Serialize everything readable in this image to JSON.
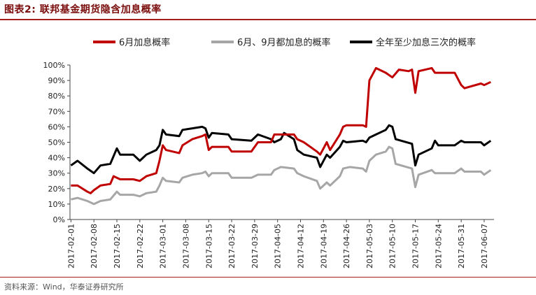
{
  "header": {
    "title": "图表2:    联邦基金期货隐含加息概率"
  },
  "footer": {
    "source": "资料来源：Wind，华泰证券研究所"
  },
  "chart_data": {
    "type": "line",
    "title": "",
    "xlabel": "",
    "ylabel": "",
    "ylim": [
      0,
      1
    ],
    "yticks": [
      "0%",
      "10%",
      "20%",
      "30%",
      "40%",
      "50%",
      "60%",
      "70%",
      "80%",
      "90%",
      "100%"
    ],
    "grid": false,
    "legend_position": "top",
    "x_tick_labels": [
      "2017-02-01",
      "2017-02-08",
      "2017-02-15",
      "2017-02-22",
      "2017-03-01",
      "2017-03-08",
      "2017-03-15",
      "2017-03-22",
      "2017-03-29",
      "2017-04-05",
      "2017-04-12",
      "2017-04-19",
      "2017-04-26",
      "2017-05-03",
      "2017-05-10",
      "2017-05-17",
      "2017-05-24",
      "2017-05-31",
      "2017-06-07"
    ],
    "series": [
      {
        "name": "6月加息概率",
        "color": "#c00000",
        "points": [
          [
            "2017-02-01",
            0.22
          ],
          [
            "2017-02-03",
            0.22
          ],
          [
            "2017-02-06",
            0.18
          ],
          [
            "2017-02-07",
            0.17
          ],
          [
            "2017-02-08",
            0.19
          ],
          [
            "2017-02-10",
            0.22
          ],
          [
            "2017-02-13",
            0.23
          ],
          [
            "2017-02-14",
            0.28
          ],
          [
            "2017-02-16",
            0.26
          ],
          [
            "2017-02-20",
            0.26
          ],
          [
            "2017-02-22",
            0.25
          ],
          [
            "2017-02-24",
            0.28
          ],
          [
            "2017-02-27",
            0.3
          ],
          [
            "2017-02-28",
            0.38
          ],
          [
            "2017-03-01",
            0.48
          ],
          [
            "2017-03-02",
            0.45
          ],
          [
            "2017-03-06",
            0.43
          ],
          [
            "2017-03-07",
            0.48
          ],
          [
            "2017-03-10",
            0.52
          ],
          [
            "2017-03-13",
            0.54
          ],
          [
            "2017-03-14",
            0.55
          ],
          [
            "2017-03-15",
            0.45
          ],
          [
            "2017-03-16",
            0.47
          ],
          [
            "2017-03-21",
            0.47
          ],
          [
            "2017-03-22",
            0.44
          ],
          [
            "2017-03-28",
            0.44
          ],
          [
            "2017-03-30",
            0.5
          ],
          [
            "2017-04-03",
            0.5
          ],
          [
            "2017-04-04",
            0.55
          ],
          [
            "2017-04-10",
            0.55
          ],
          [
            "2017-04-11",
            0.52
          ],
          [
            "2017-04-13",
            0.5
          ],
          [
            "2017-04-17",
            0.44
          ],
          [
            "2017-04-18",
            0.42
          ],
          [
            "2017-04-20",
            0.5
          ],
          [
            "2017-04-21",
            0.45
          ],
          [
            "2017-04-24",
            0.55
          ],
          [
            "2017-04-25",
            0.6
          ],
          [
            "2017-04-26",
            0.61
          ],
          [
            "2017-05-01",
            0.61
          ],
          [
            "2017-05-02",
            0.6
          ],
          [
            "2017-05-03",
            0.9
          ],
          [
            "2017-05-05",
            0.98
          ],
          [
            "2017-05-08",
            0.95
          ],
          [
            "2017-05-10",
            0.92
          ],
          [
            "2017-05-12",
            0.97
          ],
          [
            "2017-05-15",
            0.96
          ],
          [
            "2017-05-16",
            0.97
          ],
          [
            "2017-05-17",
            0.82
          ],
          [
            "2017-05-18",
            0.96
          ],
          [
            "2017-05-22",
            0.98
          ],
          [
            "2017-05-23",
            0.95
          ],
          [
            "2017-05-29",
            0.95
          ],
          [
            "2017-05-31",
            0.87
          ],
          [
            "2017-06-01",
            0.85
          ],
          [
            "2017-06-06",
            0.88
          ],
          [
            "2017-06-07",
            0.87
          ],
          [
            "2017-06-09",
            0.89
          ]
        ]
      },
      {
        "name": "6月、9月都加息的概率",
        "color": "#a6a6a6",
        "points": [
          [
            "2017-02-01",
            0.13
          ],
          [
            "2017-02-03",
            0.14
          ],
          [
            "2017-02-06",
            0.12
          ],
          [
            "2017-02-08",
            0.1
          ],
          [
            "2017-02-10",
            0.12
          ],
          [
            "2017-02-13",
            0.13
          ],
          [
            "2017-02-15",
            0.18
          ],
          [
            "2017-02-16",
            0.16
          ],
          [
            "2017-02-20",
            0.16
          ],
          [
            "2017-02-22",
            0.15
          ],
          [
            "2017-02-24",
            0.17
          ],
          [
            "2017-02-27",
            0.18
          ],
          [
            "2017-02-28",
            0.22
          ],
          [
            "2017-03-01",
            0.27
          ],
          [
            "2017-03-02",
            0.25
          ],
          [
            "2017-03-06",
            0.24
          ],
          [
            "2017-03-07",
            0.27
          ],
          [
            "2017-03-10",
            0.29
          ],
          [
            "2017-03-13",
            0.3
          ],
          [
            "2017-03-14",
            0.31
          ],
          [
            "2017-03-15",
            0.28
          ],
          [
            "2017-03-16",
            0.3
          ],
          [
            "2017-03-21",
            0.3
          ],
          [
            "2017-03-22",
            0.27
          ],
          [
            "2017-03-28",
            0.27
          ],
          [
            "2017-03-30",
            0.29
          ],
          [
            "2017-04-03",
            0.29
          ],
          [
            "2017-04-04",
            0.32
          ],
          [
            "2017-04-06",
            0.34
          ],
          [
            "2017-04-10",
            0.33
          ],
          [
            "2017-04-11",
            0.3
          ],
          [
            "2017-04-13",
            0.28
          ],
          [
            "2017-04-17",
            0.25
          ],
          [
            "2017-04-18",
            0.2
          ],
          [
            "2017-04-20",
            0.24
          ],
          [
            "2017-04-21",
            0.22
          ],
          [
            "2017-04-24",
            0.28
          ],
          [
            "2017-04-25",
            0.33
          ],
          [
            "2017-04-27",
            0.34
          ],
          [
            "2017-05-01",
            0.33
          ],
          [
            "2017-05-02",
            0.31
          ],
          [
            "2017-05-03",
            0.38
          ],
          [
            "2017-05-05",
            0.42
          ],
          [
            "2017-05-08",
            0.44
          ],
          [
            "2017-05-09",
            0.47
          ],
          [
            "2017-05-10",
            0.46
          ],
          [
            "2017-05-11",
            0.36
          ],
          [
            "2017-05-16",
            0.33
          ],
          [
            "2017-05-17",
            0.21
          ],
          [
            "2017-05-18",
            0.29
          ],
          [
            "2017-05-22",
            0.32
          ],
          [
            "2017-05-23",
            0.3
          ],
          [
            "2017-05-29",
            0.3
          ],
          [
            "2017-05-31",
            0.33
          ],
          [
            "2017-06-01",
            0.31
          ],
          [
            "2017-06-06",
            0.31
          ],
          [
            "2017-06-07",
            0.29
          ],
          [
            "2017-06-09",
            0.32
          ]
        ]
      },
      {
        "name": "全年至少加息三次的概率",
        "color": "#000000",
        "points": [
          [
            "2017-02-01",
            0.35
          ],
          [
            "2017-02-03",
            0.38
          ],
          [
            "2017-02-06",
            0.33
          ],
          [
            "2017-02-08",
            0.3
          ],
          [
            "2017-02-10",
            0.35
          ],
          [
            "2017-02-13",
            0.36
          ],
          [
            "2017-02-15",
            0.46
          ],
          [
            "2017-02-16",
            0.42
          ],
          [
            "2017-02-20",
            0.42
          ],
          [
            "2017-02-22",
            0.38
          ],
          [
            "2017-02-24",
            0.42
          ],
          [
            "2017-02-27",
            0.45
          ],
          [
            "2017-02-28",
            0.48
          ],
          [
            "2017-03-01",
            0.58
          ],
          [
            "2017-03-02",
            0.55
          ],
          [
            "2017-03-06",
            0.54
          ],
          [
            "2017-03-07",
            0.58
          ],
          [
            "2017-03-10",
            0.59
          ],
          [
            "2017-03-13",
            0.6
          ],
          [
            "2017-03-14",
            0.59
          ],
          [
            "2017-03-15",
            0.53
          ],
          [
            "2017-03-16",
            0.56
          ],
          [
            "2017-03-21",
            0.55
          ],
          [
            "2017-03-22",
            0.52
          ],
          [
            "2017-03-28",
            0.51
          ],
          [
            "2017-03-30",
            0.55
          ],
          [
            "2017-04-03",
            0.52
          ],
          [
            "2017-04-04",
            0.5
          ],
          [
            "2017-04-06",
            0.52
          ],
          [
            "2017-04-07",
            0.56
          ],
          [
            "2017-04-10",
            0.52
          ],
          [
            "2017-04-11",
            0.45
          ],
          [
            "2017-04-13",
            0.42
          ],
          [
            "2017-04-17",
            0.4
          ],
          [
            "2017-04-18",
            0.34
          ],
          [
            "2017-04-20",
            0.42
          ],
          [
            "2017-04-21",
            0.4
          ],
          [
            "2017-04-24",
            0.47
          ],
          [
            "2017-04-25",
            0.51
          ],
          [
            "2017-04-26",
            0.5
          ],
          [
            "2017-05-01",
            0.51
          ],
          [
            "2017-05-02",
            0.5
          ],
          [
            "2017-05-03",
            0.53
          ],
          [
            "2017-05-05",
            0.55
          ],
          [
            "2017-05-08",
            0.58
          ],
          [
            "2017-05-09",
            0.61
          ],
          [
            "2017-05-10",
            0.6
          ],
          [
            "2017-05-11",
            0.52
          ],
          [
            "2017-05-16",
            0.49
          ],
          [
            "2017-05-17",
            0.35
          ],
          [
            "2017-05-18",
            0.42
          ],
          [
            "2017-05-22",
            0.46
          ],
          [
            "2017-05-23",
            0.51
          ],
          [
            "2017-05-24",
            0.48
          ],
          [
            "2017-05-29",
            0.48
          ],
          [
            "2017-05-31",
            0.51
          ],
          [
            "2017-06-01",
            0.5
          ],
          [
            "2017-06-06",
            0.5
          ],
          [
            "2017-06-07",
            0.48
          ],
          [
            "2017-06-09",
            0.51
          ]
        ]
      }
    ]
  }
}
